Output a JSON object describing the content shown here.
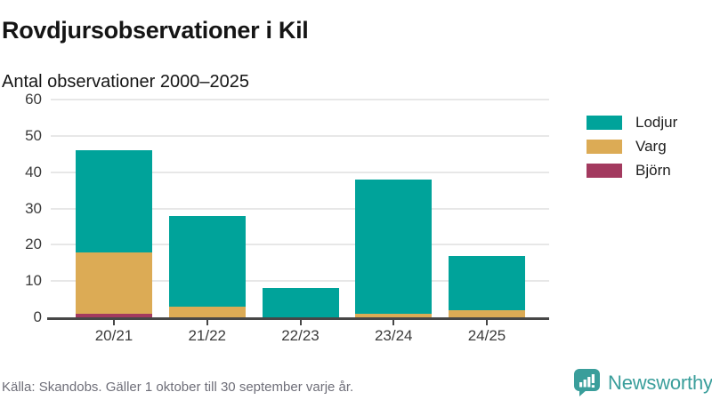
{
  "title": "Rovdjursobservationer i Kil",
  "subtitle": "Antal observationer 2000–2025",
  "footer": {
    "source": "Källa: Skandobs. Gäller 1 oktober till 30 september varje år."
  },
  "branding": {
    "name": "Newsworthy",
    "icon": "newsworthy-speech-bubble-bar-chart-icon",
    "color": "#3a9e9b"
  },
  "colors": {
    "lodjur": "#00a39a",
    "varg": "#dcab55",
    "bjorn": "#a33a5f",
    "grid": "#e7e7e7",
    "axis": "#474747",
    "text": "#151515",
    "muted_text": "#6f6f79"
  },
  "chart_data": {
    "type": "bar",
    "stacked": true,
    "title": "Rovdjursobservationer i Kil",
    "subtitle": "Antal observationer 2000–2025",
    "categories": [
      "20/21",
      "21/22",
      "22/23",
      "23/24",
      "24/25"
    ],
    "series": [
      {
        "name": "Lodjur",
        "color": "#00a39a",
        "values": [
          28,
          25,
          8,
          37,
          15
        ]
      },
      {
        "name": "Varg",
        "color": "#dcab55",
        "values": [
          17,
          3,
          0,
          1,
          2
        ]
      },
      {
        "name": "Björn",
        "color": "#a33a5f",
        "values": [
          1,
          0,
          0,
          0,
          0
        ]
      }
    ],
    "totals": [
      46,
      28,
      8,
      38,
      17
    ],
    "xlabel": "",
    "ylabel": "",
    "ylim": [
      0,
      60
    ],
    "yticks": [
      0,
      10,
      20,
      30,
      40,
      50,
      60
    ],
    "grid": true,
    "legend_position": "right"
  }
}
